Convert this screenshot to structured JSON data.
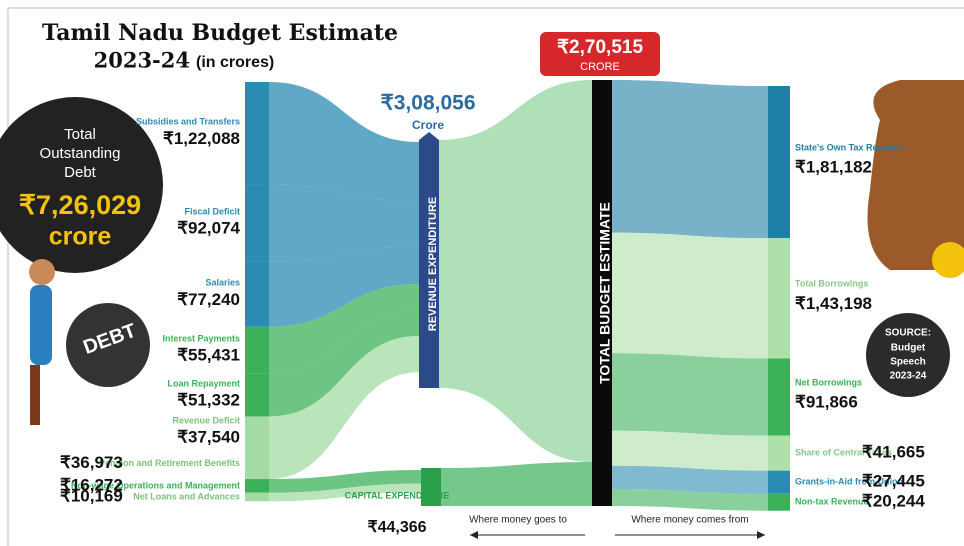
{
  "chart_data": {
    "type": "sankey",
    "title": "Tamil Nadu Budget Estimate",
    "subtitle": "2023-24",
    "subtitle_unit": "(in crores)",
    "debt": {
      "lines": [
        "Total",
        "Outstanding",
        "Debt"
      ],
      "amount": "₹7,26,029",
      "unit": "crore",
      "badge": "DEBT"
    },
    "expenditure": [
      {
        "name": "Subsidies and Transfers",
        "value": 122088,
        "value_label": "₹1,22,088",
        "color": "#2b8cb3"
      },
      {
        "name": "Fiscal Deficit",
        "value": 92074,
        "value_label": "₹92,074",
        "color": "#2b8cb3"
      },
      {
        "name": "Salaries",
        "value": 77240,
        "value_label": "₹77,240",
        "color": "#2b8cb3"
      },
      {
        "name": "Interest Payments",
        "value": 55431,
        "value_label": "₹55,431",
        "color": "#3bb15a"
      },
      {
        "name": "Loan Repayment",
        "value": 51332,
        "value_label": "₹51,332",
        "color": "#3bb15a"
      },
      {
        "name": "Revenue Deficit",
        "value": 37540,
        "value_label": "₹37,540",
        "color": "#a3dba3"
      },
      {
        "name": "Pension and Retirement Benefits",
        "value": 36973,
        "value_label": "₹36,973",
        "color": "#a3dba3"
      },
      {
        "name": "Non-wage Operations and Management",
        "value": 16272,
        "value_label": "₹16,272",
        "color": "#3bb15a"
      },
      {
        "name": "Net Loans and Advances",
        "value": 10169,
        "value_label": "₹10,169",
        "color": "#a3dba3"
      }
    ],
    "revenue_expenditure": {
      "label": "REVENUE EXPENDITURE",
      "amount": "₹3,08,056",
      "unit": "Crore"
    },
    "capital_expenditure": {
      "label": "CAPITAL EXPENDITURE",
      "amount": "₹44,366"
    },
    "total": {
      "label": "TOTAL BUDGET ESTIMATE",
      "amount": "₹2,70,515",
      "unit": "CRORE"
    },
    "receipts": [
      {
        "name": "State's Own Tax Revenue",
        "value": 181182,
        "value_label": "₹1,81,182",
        "color": "#1c7fa3"
      },
      {
        "name": "Total Borrowings",
        "value": 143198,
        "value_label": "₹1,43,198",
        "color": "#aee0aa"
      },
      {
        "name": "Net Borrowings",
        "value": 91866,
        "value_label": "₹91,866",
        "color": "#3bb15a"
      },
      {
        "name": "Share of Central Taxes",
        "value": 41665,
        "value_label": "₹41,665",
        "color": "#aee0aa"
      },
      {
        "name": "Grants-in-Aid from Union",
        "value": 27445,
        "value_label": "₹27,445",
        "color": "#2b8cb3"
      },
      {
        "name": "Non-tax Revenue",
        "value": 20244,
        "value_label": "₹20,244",
        "color": "#3bb15a"
      }
    ],
    "source": [
      "SOURCE:",
      "Budget",
      "Speech",
      "2023-24"
    ],
    "arrows": [
      "Where money goes to",
      "Where money comes from"
    ]
  }
}
